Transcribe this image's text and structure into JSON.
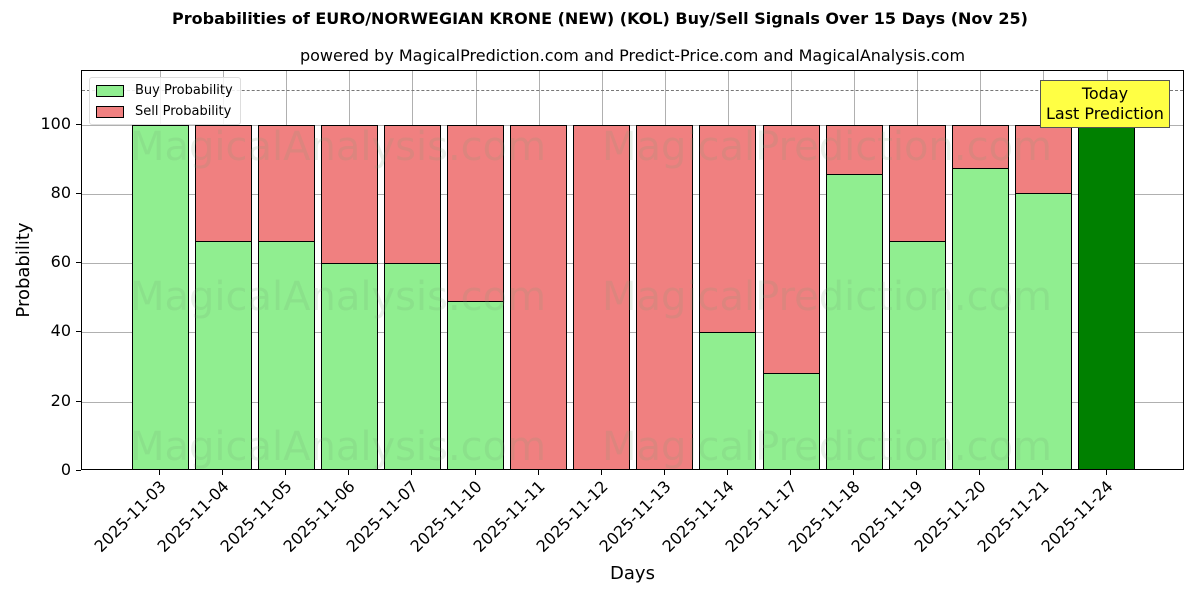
{
  "chart_data": {
    "type": "bar",
    "stacked": true,
    "title": "Probabilities of EURO/NORWEGIAN KRONE (NEW) (KOL) Buy/Sell Signals Over 15 Days (Nov 25)",
    "subtitle": "powered by MagicalPrediction.com and Predict-Price.com and MagicalAnalysis.com",
    "xlabel": "Days",
    "ylabel": "Probability",
    "ylim": [
      0,
      115.5
    ],
    "yticks": [
      0,
      20,
      40,
      60,
      80,
      100
    ],
    "grid": true,
    "legend_position": "upper left",
    "reference_line": {
      "y": 110,
      "style": "dashed",
      "color": "#808080"
    },
    "categories": [
      "2025-11-03",
      "2025-11-04",
      "2025-11-05",
      "2025-11-06",
      "2025-11-07",
      "2025-11-10",
      "2025-11-11",
      "2025-11-12",
      "2025-11-13",
      "2025-11-14",
      "2025-11-17",
      "2025-11-18",
      "2025-11-19",
      "2025-11-20",
      "2025-11-21",
      "2025-11-24"
    ],
    "series": [
      {
        "name": "Buy Probability",
        "color": "#90ee90",
        "values": [
          100,
          66.5,
          66.5,
          60,
          60,
          49,
          0,
          0,
          0,
          40,
          28.3,
          85.8,
          66.5,
          87.6,
          80.3,
          100
        ]
      },
      {
        "name": "Sell Probability",
        "color": "#f08080",
        "values": [
          0,
          33.5,
          33.5,
          40,
          40,
          51,
          100,
          100,
          100,
          60,
          71.7,
          14.2,
          33.5,
          12.4,
          19.7,
          0
        ]
      }
    ],
    "highlight": {
      "index": 15,
      "color": "#008000",
      "annotation": "Today\nLast Prediction",
      "annotation_bg": "#ffff44"
    },
    "watermarks": [
      "MagicalAnalysis.com",
      "MagicalPrediction.com"
    ]
  },
  "legend": {
    "buy": "Buy Probability",
    "sell": "Sell Probability"
  },
  "annotation": {
    "line1": "Today",
    "line2": "Last Prediction"
  }
}
